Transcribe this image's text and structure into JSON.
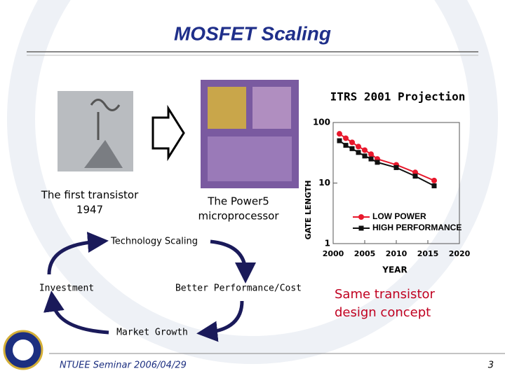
{
  "slide": {
    "title": "MOSFET Scaling",
    "transistor_caption": [
      "The first transistor",
      "1947"
    ],
    "power5_caption": [
      "The Power5",
      "microprocessor"
    ],
    "cycle": {
      "top": "Technology Scaling",
      "left": "Investment",
      "right": "Better Performance/Cost",
      "bottom": "Market Growth"
    },
    "conclusion": [
      "Same transistor",
      "design concept"
    ],
    "footer": "NTUEE Seminar 2006/04/29",
    "page_number": "3"
  },
  "chart_data": {
    "type": "line",
    "title": "ITRS 2001 Projection",
    "x_label": "YEAR",
    "y_label": "GATE LENGTH",
    "log_y": true,
    "legend": "lower left",
    "x": [
      2001,
      2002,
      2003,
      2004,
      2005,
      2006,
      2007,
      2010,
      2013,
      2016
    ],
    "series": [
      {
        "name": "LOW POWER",
        "color": "#e8182c",
        "marker": "circle",
        "values": [
          65,
          55,
          47,
          40,
          35,
          30,
          25,
          20,
          15,
          11
        ]
      },
      {
        "name": "HIGH PERFORMANCE",
        "color": "#111111",
        "marker": "square",
        "values": [
          50,
          42,
          37,
          32,
          28,
          25,
          22,
          18,
          13,
          9
        ]
      }
    ],
    "xlim": [
      2000,
      2020
    ],
    "xticks": [
      2000,
      2005,
      2010,
      2015,
      2020
    ],
    "ylim": [
      1,
      100
    ],
    "yticks": [
      1,
      10,
      100
    ]
  }
}
